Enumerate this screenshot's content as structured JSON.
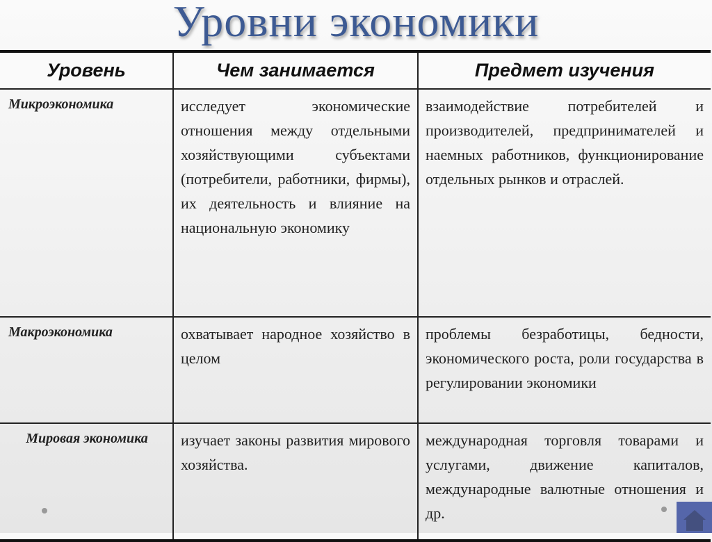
{
  "title": "Уровни экономики",
  "table": {
    "headers": [
      "Уровень",
      "Чем занимается",
      "Предмет изучения"
    ],
    "rows": [
      {
        "level": "Микроэкономика",
        "does": "исследует экономические отношения между отдельными хозяйствующими субъектами (потребители, работники, фирмы), их деятельность и влияние на национальную экономику",
        "subject": "взаимодействие потребителей и производителей, предпринимателей и наемных работников, функционирование отдельных рынков и отраслей."
      },
      {
        "level": "Макроэкономика",
        "does": "охватывает народное хозяйство в целом",
        "subject": "проблемы безработицы, бедности, экономического роста, роли государства в регулировании экономики"
      },
      {
        "level": "Мировая экономика",
        "does": "изучает законы развития мирового хозяйства.",
        "subject": "международная торговля товарами и услугами, движение капиталов, международные валютные отношения и др."
      }
    ]
  },
  "nav": {
    "home_icon": "home-icon"
  },
  "colors": {
    "title": "#3d5a93",
    "home_button": "#5566aa"
  }
}
